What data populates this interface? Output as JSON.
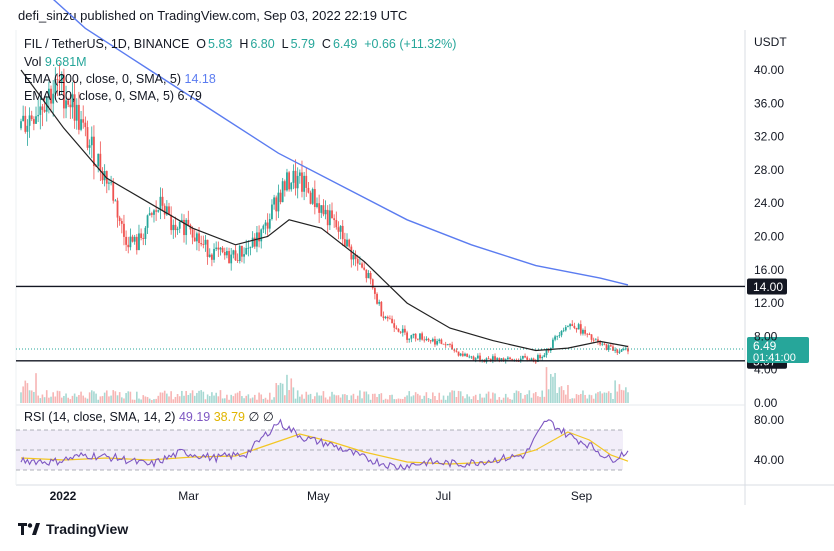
{
  "header": {
    "text": "defi_sinzu published on TradingView.com, Sep 03, 2022 22:19 UTC"
  },
  "legend": {
    "symbol": "FIL / TetherUS, 1D, BINANCE",
    "o_label": "O",
    "o_value": "5.83",
    "h_label": "H",
    "h_value": "6.80",
    "l_label": "L",
    "l_value": "5.79",
    "c_label": "C",
    "c_value": "6.49",
    "change": "+0.66 (+11.32%)",
    "vol_label": "Vol",
    "vol_value": "9.681M",
    "ema200_label": "EMA (200, close, 0, SMA, 5)",
    "ema200_value": "14.18",
    "ema50_label": "EMA (50, close, 0, SMA, 5)",
    "ema50_value": "6.79"
  },
  "rsi_legend": {
    "label": "RSI (14, close, SMA, 14, 2)",
    "rsi_value": "49.19",
    "sma_value": "38.79",
    "extra": "∅ ∅"
  },
  "footer": {
    "brand": "TradingView",
    "logo_icon": "tradingview-logo-icon"
  },
  "colors": {
    "up": "#26a69a",
    "down": "#ef5350",
    "ema200": "#5b7cf0",
    "ema50": "#222222",
    "rsi": "#7e57c2",
    "rsi_sma": "#f3c623"
  },
  "chart_data": [
    {
      "type": "candlestick",
      "currency": "USDT",
      "x_tick_labels": [
        "2022",
        "Mar",
        "May",
        "Jul",
        "Sep"
      ],
      "y_tick_labels": [
        "40.00",
        "36.00",
        "32.00",
        "28.00",
        "24.00",
        "20.00",
        "16.00",
        "12.00",
        "8.00",
        "4.00",
        "0.00"
      ],
      "ylim": [
        0,
        43
      ],
      "price_badge": {
        "value": "6.49",
        "countdown": "01:41:00"
      },
      "horizontal_levels": [
        {
          "value": 14.0,
          "label": "14.00"
        },
        {
          "value": 5.07,
          "label": "5.07"
        }
      ],
      "close_path": [
        [
          0,
          33
        ],
        [
          6,
          35
        ],
        [
          12,
          37
        ],
        [
          18,
          38
        ],
        [
          24,
          36
        ],
        [
          30,
          32
        ],
        [
          36,
          29
        ],
        [
          42,
          26
        ],
        [
          48,
          20
        ],
        [
          54,
          19
        ],
        [
          60,
          22
        ],
        [
          66,
          24
        ],
        [
          72,
          20
        ],
        [
          78,
          22
        ],
        [
          84,
          19
        ],
        [
          90,
          18
        ],
        [
          96,
          17.5
        ],
        [
          102,
          18
        ],
        [
          108,
          19
        ],
        [
          114,
          21
        ],
        [
          120,
          25
        ],
        [
          126,
          27
        ],
        [
          132,
          26
        ],
        [
          138,
          24
        ],
        [
          144,
          22
        ],
        [
          150,
          20
        ],
        [
          156,
          17
        ],
        [
          162,
          15
        ],
        [
          168,
          11
        ],
        [
          174,
          9.5
        ],
        [
          180,
          8
        ],
        [
          186,
          8
        ],
        [
          192,
          7.5
        ],
        [
          198,
          7
        ],
        [
          204,
          6
        ],
        [
          210,
          5.5
        ],
        [
          216,
          5.2
        ],
        [
          222,
          5.4
        ],
        [
          228,
          5.1
        ],
        [
          234,
          5.3
        ],
        [
          240,
          5.2
        ],
        [
          246,
          6.5
        ],
        [
          252,
          9
        ],
        [
          258,
          9.5
        ],
        [
          264,
          8
        ],
        [
          270,
          7
        ],
        [
          276,
          6.5
        ],
        [
          280,
          6.2
        ],
        [
          283,
          6.49
        ]
      ],
      "ema200_path": [
        [
          0,
          52
        ],
        [
          30,
          45
        ],
        [
          60,
          40
        ],
        [
          90,
          35
        ],
        [
          120,
          30
        ],
        [
          150,
          26
        ],
        [
          180,
          22
        ],
        [
          210,
          19
        ],
        [
          240,
          16.5
        ],
        [
          270,
          15
        ],
        [
          283,
          14.18
        ]
      ],
      "ema50_path": [
        [
          0,
          40
        ],
        [
          20,
          33
        ],
        [
          40,
          27
        ],
        [
          60,
          24
        ],
        [
          80,
          21
        ],
        [
          100,
          19
        ],
        [
          115,
          20
        ],
        [
          125,
          22
        ],
        [
          140,
          21
        ],
        [
          160,
          17
        ],
        [
          180,
          12
        ],
        [
          200,
          9
        ],
        [
          220,
          7.5
        ],
        [
          240,
          6.3
        ],
        [
          255,
          6.6
        ],
        [
          270,
          7.4
        ],
        [
          283,
          6.79
        ]
      ]
    },
    {
      "type": "line",
      "name": "RSI",
      "y_tick_labels": [
        "80.00",
        "40.00"
      ],
      "ylim": [
        20,
        85
      ],
      "bands": [
        70,
        50,
        30
      ],
      "rsi_path": [
        [
          0,
          40
        ],
        [
          15,
          38
        ],
        [
          30,
          45
        ],
        [
          45,
          42
        ],
        [
          60,
          35
        ],
        [
          75,
          48
        ],
        [
          90,
          42
        ],
        [
          105,
          46
        ],
        [
          120,
          78
        ],
        [
          132,
          62
        ],
        [
          145,
          55
        ],
        [
          160,
          42
        ],
        [
          175,
          33
        ],
        [
          190,
          38
        ],
        [
          205,
          36
        ],
        [
          220,
          40
        ],
        [
          235,
          45
        ],
        [
          245,
          80
        ],
        [
          255,
          65
        ],
        [
          265,
          55
        ],
        [
          275,
          40
        ],
        [
          283,
          49.19
        ]
      ],
      "sma_path": [
        [
          0,
          42
        ],
        [
          20,
          40
        ],
        [
          40,
          42
        ],
        [
          60,
          40
        ],
        [
          80,
          43
        ],
        [
          100,
          44
        ],
        [
          115,
          55
        ],
        [
          130,
          66
        ],
        [
          145,
          58
        ],
        [
          160,
          48
        ],
        [
          180,
          38
        ],
        [
          200,
          36
        ],
        [
          220,
          38
        ],
        [
          240,
          50
        ],
        [
          255,
          68
        ],
        [
          265,
          60
        ],
        [
          275,
          45
        ],
        [
          283,
          38.79
        ]
      ]
    }
  ]
}
